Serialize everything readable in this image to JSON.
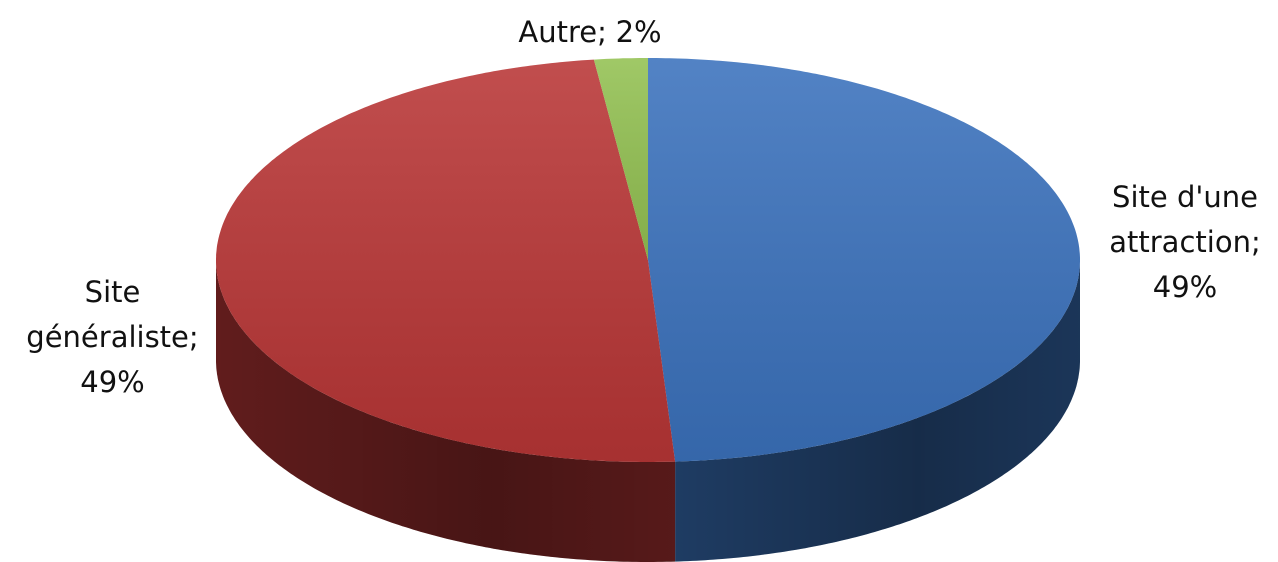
{
  "chart_data": {
    "type": "pie",
    "categories": [
      "Site d'une attraction",
      "Site généraliste",
      "Autre"
    ],
    "values": [
      49,
      49,
      2
    ],
    "value_labels": [
      "49%",
      "49%",
      "2%"
    ],
    "label_separator": ";",
    "colors": [
      "#3b72bd",
      "#b93636",
      "#93c152"
    ]
  }
}
